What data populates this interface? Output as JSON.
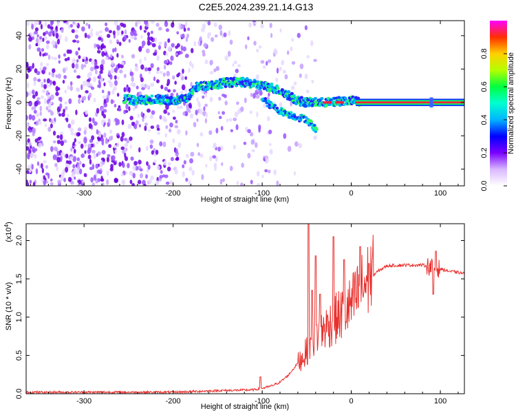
{
  "title": "C2E5.2024.239.21.14.G13",
  "chart_data": [
    {
      "type": "heatmap",
      "xlabel": "Height of straight line (km)",
      "ylabel": "Frequency (Hz)",
      "xlim": [
        -365,
        127
      ],
      "ylim": [
        -50,
        49
      ],
      "xticks": [
        -300,
        -200,
        -100,
        0,
        100
      ],
      "yticks": [
        -40,
        -20,
        0,
        20,
        40
      ],
      "colorbar": {
        "label": "Normalized spectral amplitude",
        "range": [
          0,
          1
        ],
        "ticks": [
          "0.0",
          "0.2",
          "0.4",
          "0.6",
          "0.8"
        ],
        "colors": [
          "#ffffff",
          "#d9b8ff",
          "#7a00ff",
          "#0000ff",
          "#00b4ff",
          "#00ffd0",
          "#00ff40",
          "#b4ff00",
          "#ffd000",
          "#ff3000",
          "#ff00ff"
        ]
      },
      "ridge": {
        "x": [
          -255,
          -240,
          -220,
          -200,
          -185,
          -175,
          -165,
          -150,
          -140,
          -130,
          -120,
          -110,
          -100,
          -90,
          -80,
          -70,
          -60,
          -50,
          -40,
          -30,
          -20,
          -10,
          0,
          5,
          10,
          50,
          100,
          127
        ],
        "y": [
          2,
          1,
          2,
          1,
          2,
          9,
          10,
          11,
          12,
          12,
          12,
          11,
          10,
          9,
          7,
          4,
          1,
          0,
          0,
          0,
          0,
          1,
          1,
          1,
          0,
          0,
          0,
          0
        ]
      },
      "ridge2": {
        "x": [
          -100,
          -90,
          -80,
          -70,
          -60,
          -50,
          -45,
          -40
        ],
        "y": [
          2,
          -2,
          -5,
          -7,
          -9,
          -10,
          -13,
          -16
        ]
      }
    },
    {
      "type": "line",
      "xlabel": "Height of straight line (km)",
      "ylabel": "SNR (10 * v/v)",
      "y_multiplier": "(x10",
      "y_exponent": "4",
      "y_multiplier_close": ")",
      "xlim": [
        -365,
        127
      ],
      "ylim": [
        0,
        2.22
      ],
      "xticks": [
        -300,
        -200,
        -100,
        0,
        100
      ],
      "yticks": [
        "0.0",
        "0.5",
        "1.0",
        "1.5",
        "2.0"
      ],
      "color": "#e8312e",
      "envelope": {
        "x": [
          -365,
          -200,
          -150,
          -110,
          -100,
          -90,
          -80,
          -70,
          -60,
          -50,
          -45,
          -40,
          -35,
          -30,
          -20,
          -10,
          0,
          10,
          20,
          30,
          40,
          60,
          80,
          100,
          110,
          127
        ],
        "y": [
          0.02,
          0.02,
          0.04,
          0.05,
          0.07,
          0.1,
          0.15,
          0.25,
          0.4,
          0.55,
          0.7,
          0.75,
          0.8,
          0.85,
          0.95,
          1.05,
          1.15,
          1.35,
          1.5,
          1.6,
          1.67,
          1.68,
          1.68,
          1.63,
          1.6,
          1.57
        ]
      },
      "spikes": [
        {
          "x": -102,
          "y": 0.22
        },
        {
          "x": -48,
          "y": 2.22
        },
        {
          "x": -44,
          "y": 1.35
        },
        {
          "x": -40,
          "y": 1.8
        },
        {
          "x": -35,
          "y": 1.3
        },
        {
          "x": -20,
          "y": 2.05
        },
        {
          "x": -8,
          "y": 1.75
        },
        {
          "x": 10,
          "y": 1.92
        },
        {
          "x": 20,
          "y": 1.7
        },
        {
          "x": 95,
          "y": 1.86
        },
        {
          "x": 92,
          "y": 1.3
        }
      ]
    }
  ]
}
